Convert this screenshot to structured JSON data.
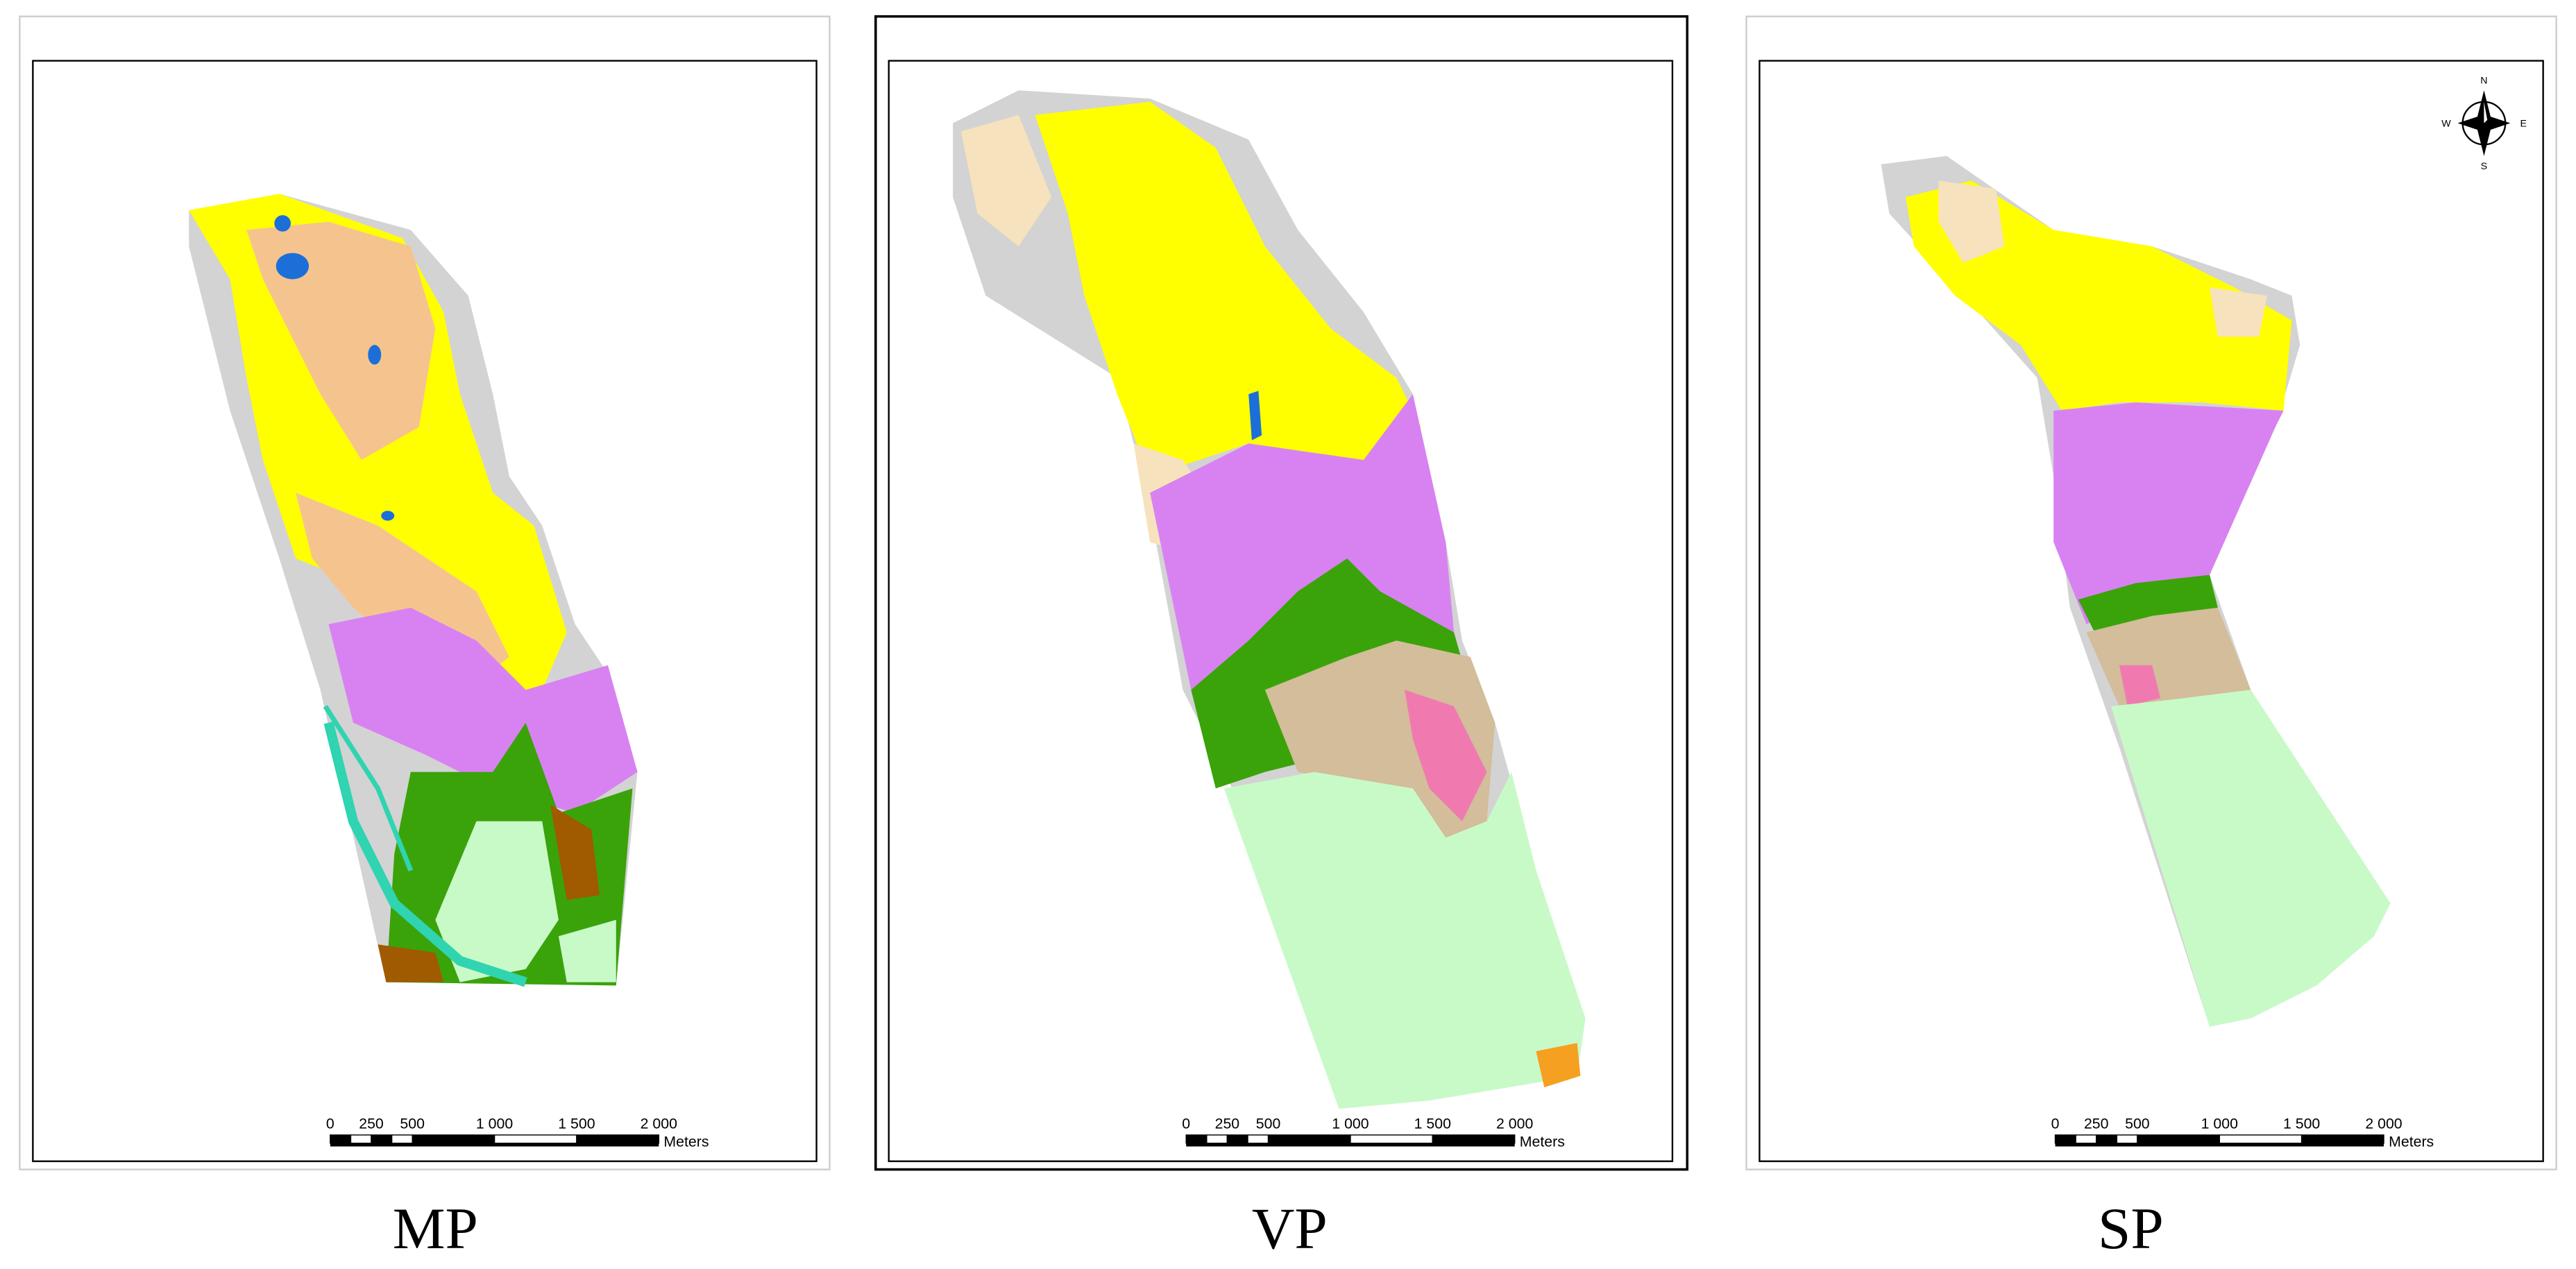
{
  "panels": [
    {
      "label": "MP",
      "scale_bar": {
        "ticks": [
          "0",
          "250",
          "500",
          "1 000",
          "1 500",
          "2 000"
        ],
        "unit": "Meters"
      }
    },
    {
      "label": "VP",
      "scale_bar": {
        "ticks": [
          "0",
          "250",
          "500",
          "1 000",
          "1 500",
          "2 000"
        ],
        "unit": "Meters"
      }
    },
    {
      "label": "SP",
      "scale_bar": {
        "ticks": [
          "0",
          "250",
          "500",
          "1 000",
          "1 500",
          "2 000"
        ],
        "unit": "Meters"
      },
      "compass": {
        "n": "N",
        "s": "S",
        "w": "W",
        "e": "E"
      }
    }
  ]
}
